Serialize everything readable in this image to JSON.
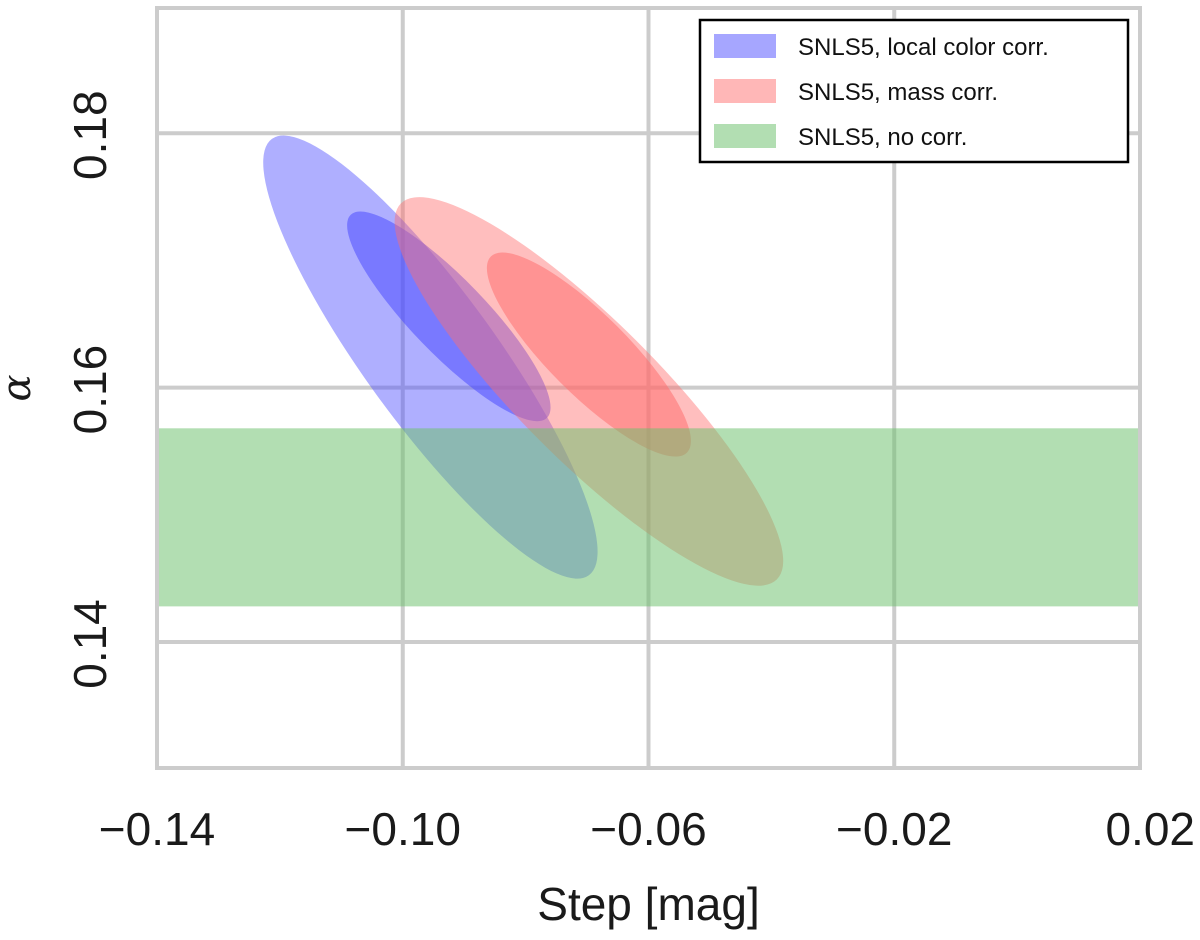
{
  "chart_data": {
    "type": "contour",
    "title": "",
    "xlabel": "Step [mag]",
    "ylabel": "α",
    "xlim": [
      -0.14,
      0.02
    ],
    "ylim": [
      0.14,
      0.18
    ],
    "xticks": [
      -0.14,
      -0.1,
      -0.06,
      -0.02,
      0.02
    ],
    "xtick_labels": [
      "−0.14",
      "−0.10",
      "−0.06",
      "−0.02",
      "0.02"
    ],
    "yticks": [
      0.14,
      0.16,
      0.18
    ],
    "ytick_labels": [
      "0.14",
      "0.16",
      "0.18"
    ],
    "grid": true,
    "legend_position": "top-right",
    "series": [
      {
        "name": "SNLS5, local color corr.",
        "color": "#4d4dff",
        "kind": "ellipse",
        "contours": [
          {
            "level": "outer",
            "cx": -0.0955,
            "cy": 0.1624,
            "semi_a": 0.0212,
            "semi_b": 0.0107,
            "rotation_deg": -36,
            "opacity": 0.45
          },
          {
            "level": "inner",
            "cx": -0.0925,
            "cy": 0.1656,
            "semi_a": 0.0111,
            "semi_b": 0.0061,
            "rotation_deg": -44,
            "opacity": 0.55
          }
        ]
      },
      {
        "name": "SNLS5, mass corr.",
        "color": "#ff6f6f",
        "kind": "ellipse",
        "contours": [
          {
            "level": "outer",
            "cx": -0.0697,
            "cy": 0.1597,
            "semi_a": 0.0209,
            "semi_b": 0.0113,
            "rotation_deg": -45,
            "opacity": 0.45
          },
          {
            "level": "inner",
            "cx": -0.0697,
            "cy": 0.1626,
            "semi_a": 0.0109,
            "semi_b": 0.0065,
            "rotation_deg": -45,
            "opacity": 0.55
          }
        ]
      },
      {
        "name": "SNLS5, no corr.",
        "color": "#6cbf6c",
        "kind": "band",
        "y_range": [
          0.1428,
          0.1568
        ],
        "opacity": 0.52
      }
    ]
  }
}
